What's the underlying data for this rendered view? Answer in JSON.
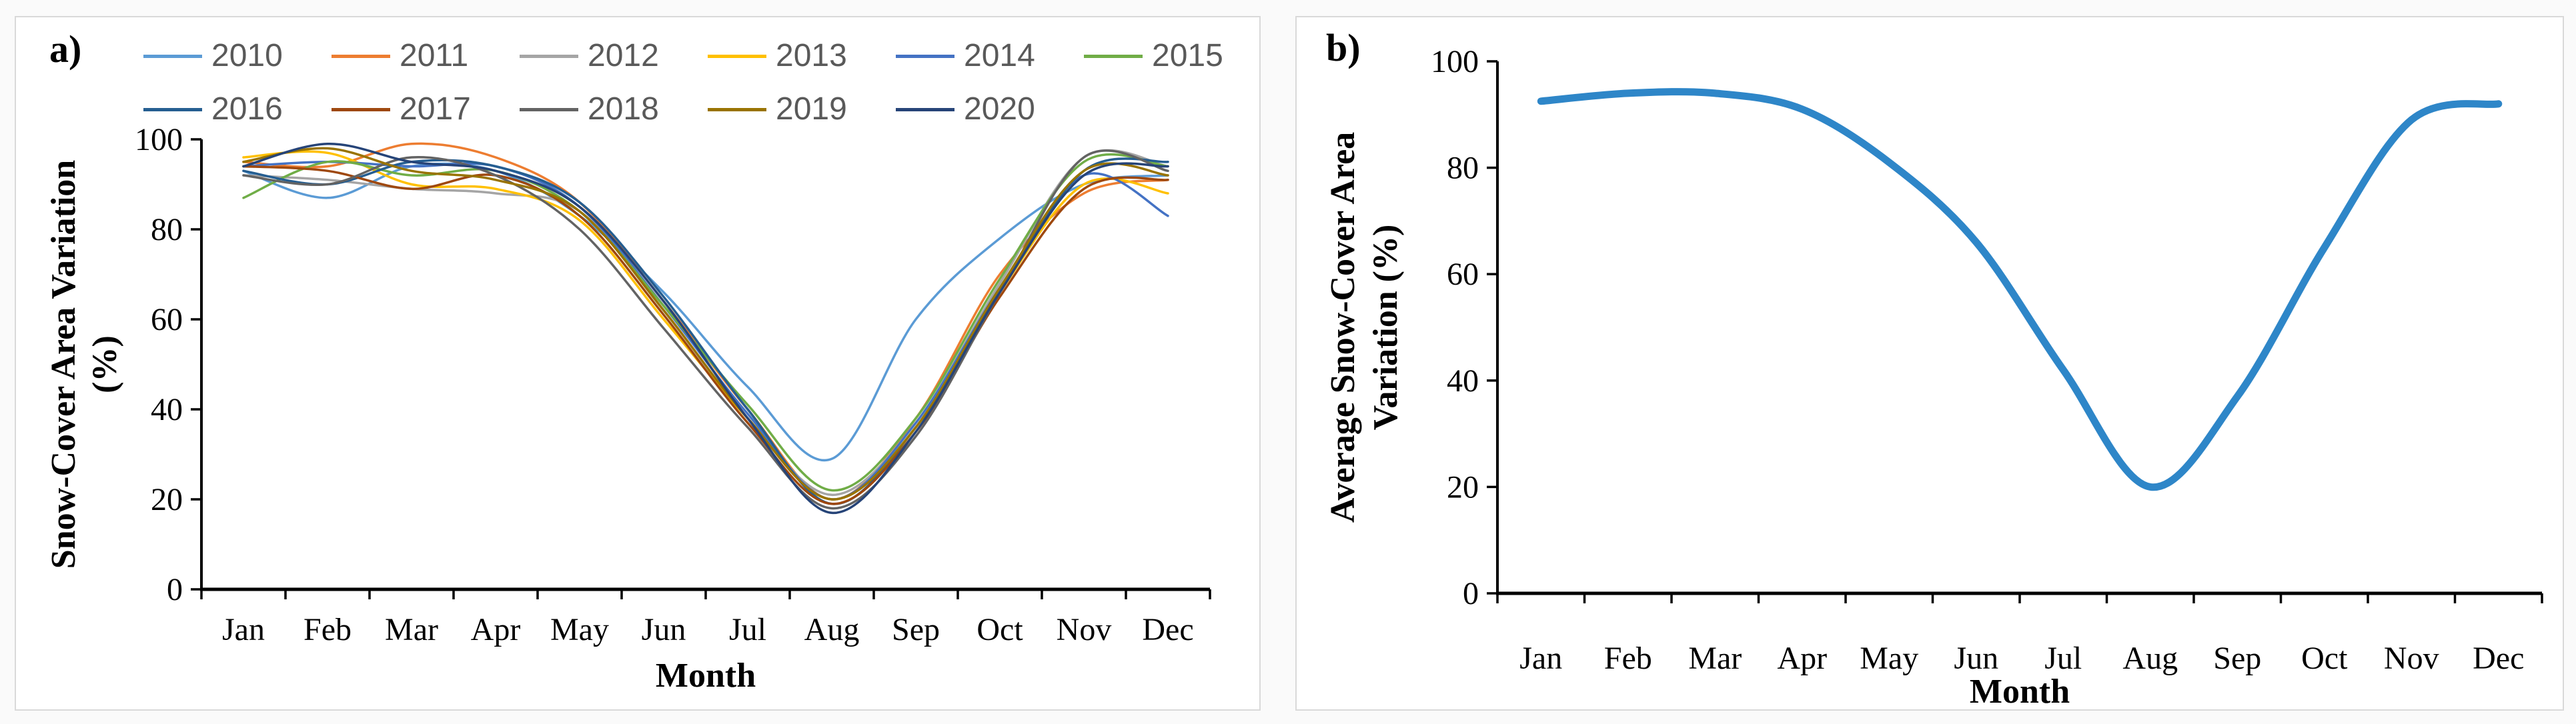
{
  "figure": {
    "background": "#fafafa",
    "panel_background": "#ffffff",
    "panel_border_color": "#d9d9d9",
    "axis_color": "#000000",
    "legend_text_color": "#595959"
  },
  "chart_data": [
    {
      "id": "a",
      "type": "line",
      "panel_label": "a)",
      "xlabel": "Month",
      "ylabel_lines": [
        "Snow-Cover Area Variation",
        "(%)"
      ],
      "categories": [
        "Jan",
        "Feb",
        "Mar",
        "Apr",
        "May",
        "Jun",
        "Jul",
        "Aug",
        "Sep",
        "Oct",
        "Nov",
        "Dec"
      ],
      "ylim": [
        0,
        100
      ],
      "yticks": [
        0,
        20,
        40,
        60,
        80,
        100
      ],
      "grid": false,
      "legend_position": "top",
      "legend_rows": [
        6,
        5
      ],
      "line_style": "smooth",
      "series": [
        {
          "name": "2010",
          "color": "#5B9BD5",
          "values": [
            93,
            87,
            94,
            93,
            83,
            66,
            45,
            29,
            60,
            78,
            90,
            92
          ]
        },
        {
          "name": "2011",
          "color": "#ED7D31",
          "values": [
            95,
            94,
            99,
            96,
            86,
            64,
            40,
            20,
            38,
            70,
            88,
            91
          ]
        },
        {
          "name": "2012",
          "color": "#A5A5A5",
          "values": [
            92,
            91,
            89,
            88,
            84,
            62,
            38,
            21,
            37,
            68,
            96,
            94
          ]
        },
        {
          "name": "2013",
          "color": "#FFC000",
          "values": [
            96,
            97,
            90,
            89,
            82,
            60,
            38,
            20,
            36,
            66,
            90,
            88
          ]
        },
        {
          "name": "2014",
          "color": "#4472C4",
          "values": [
            94,
            95,
            94,
            94,
            85,
            63,
            39,
            20,
            37,
            67,
            92,
            83
          ]
        },
        {
          "name": "2015",
          "color": "#70AD47",
          "values": [
            87,
            95,
            92,
            93,
            84,
            63,
            41,
            22,
            38,
            69,
            95,
            94
          ]
        },
        {
          "name": "2016",
          "color": "#255E91",
          "values": [
            93,
            90,
            95,
            94,
            86,
            65,
            40,
            19,
            36,
            66,
            93,
            95
          ]
        },
        {
          "name": "2017",
          "color": "#9E480E",
          "values": [
            94,
            93,
            89,
            92,
            83,
            61,
            37,
            19,
            35,
            65,
            89,
            91
          ]
        },
        {
          "name": "2018",
          "color": "#636363",
          "values": [
            92,
            90,
            96,
            92,
            80,
            58,
            36,
            18,
            34,
            66,
            96,
            93
          ]
        },
        {
          "name": "2019",
          "color": "#997300",
          "values": [
            95,
            98,
            93,
            91,
            84,
            62,
            38,
            20,
            36,
            67,
            93,
            92
          ]
        },
        {
          "name": "2020",
          "color": "#264478",
          "values": [
            94,
            99,
            95,
            93,
            85,
            64,
            38,
            17,
            35,
            66,
            92,
            94
          ]
        }
      ]
    },
    {
      "id": "b",
      "type": "line",
      "panel_label": "b)",
      "xlabel": "Month",
      "ylabel_lines": [
        "Average Snow-Cover Area",
        "Variation (%)"
      ],
      "categories": [
        "Jan",
        "Feb",
        "Mar",
        "Apr",
        "May",
        "Jun",
        "Jul",
        "Aug",
        "Sep",
        "Oct",
        "Nov",
        "Dec"
      ],
      "ylim": [
        0,
        100
      ],
      "yticks": [
        0,
        20,
        40,
        60,
        80,
        100
      ],
      "grid": false,
      "legend_position": "none",
      "line_style": "smooth",
      "series": [
        {
          "name": "Average",
          "color": "#2E86C8",
          "values": [
            92.5,
            94,
            94,
            91,
            81,
            66,
            42,
            20,
            37,
            65,
            89,
            92
          ]
        }
      ]
    }
  ]
}
